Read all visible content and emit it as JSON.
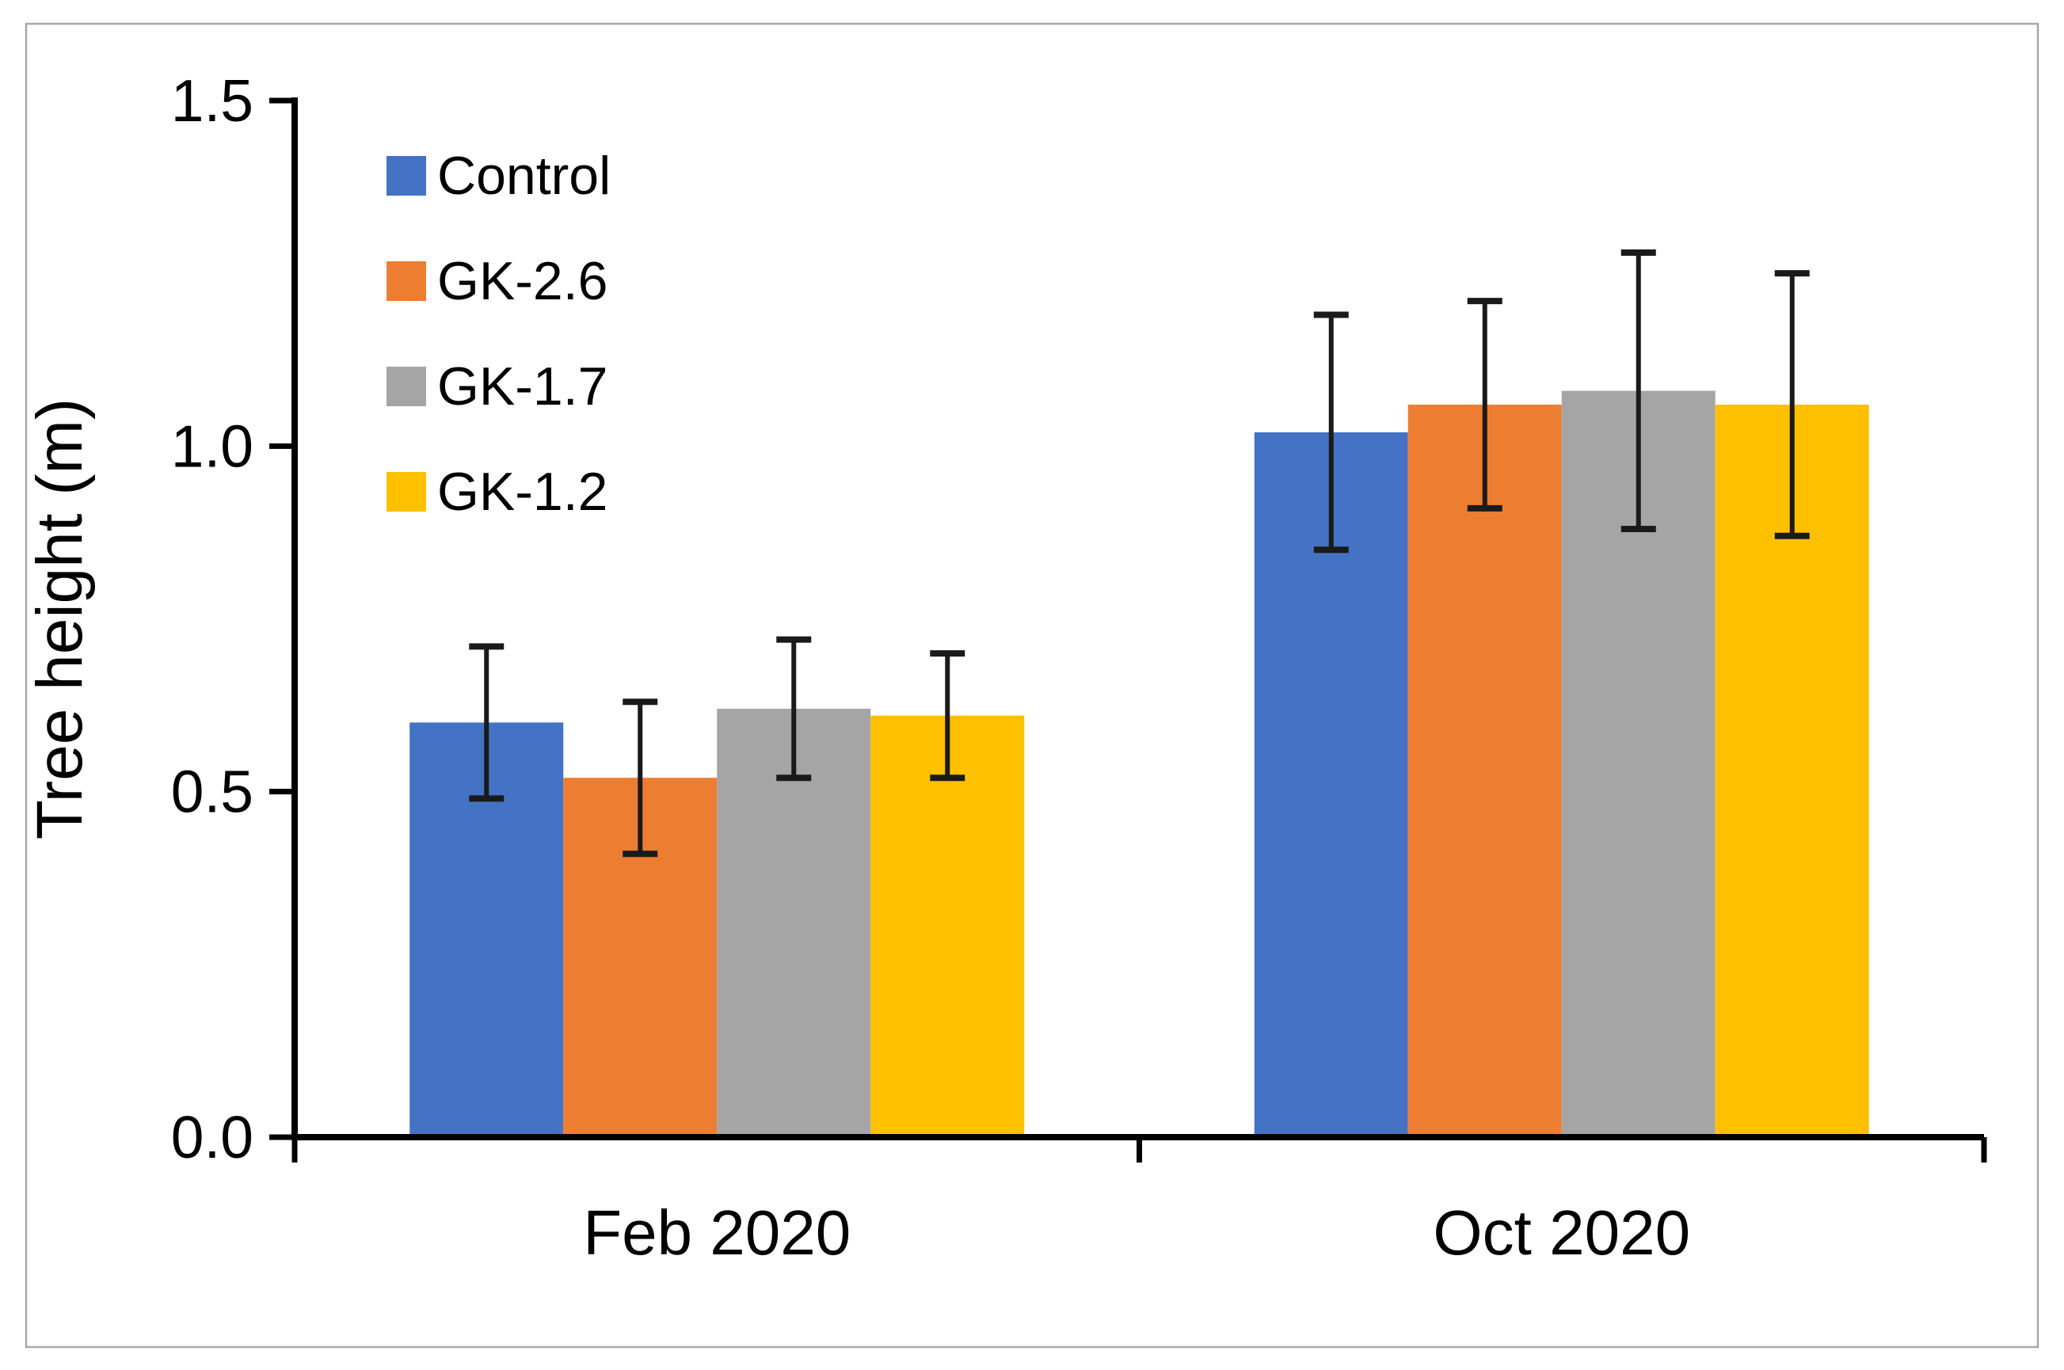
{
  "chart_data": {
    "type": "bar",
    "title": "",
    "ylabel": "Tree height (m)",
    "xlabel": "",
    "categories": [
      "Feb 2020",
      "Oct 2020"
    ],
    "ylim": [
      0,
      1.5
    ],
    "y_ticks": [
      "0.0",
      "0.5",
      "1.0",
      "1.5"
    ],
    "y_tick_values": [
      0.0,
      0.5,
      1.0,
      1.5
    ],
    "grid": false,
    "legend_position": "upper-left inside plot",
    "error_bar_note": "symmetric error bars, err values are ± in metres",
    "series": [
      {
        "name": "Control",
        "color": "#4472C4",
        "values": [
          0.6,
          1.02
        ],
        "err": [
          0.11,
          0.17
        ]
      },
      {
        "name": "GK-2.6",
        "color": "#ED7D31",
        "values": [
          0.52,
          1.06
        ],
        "err": [
          0.11,
          0.15
        ]
      },
      {
        "name": "GK-1.7",
        "color": "#A5A5A5",
        "values": [
          0.62,
          1.08
        ],
        "err": [
          0.1,
          0.2
        ]
      },
      {
        "name": "GK-1.2",
        "color": "#FFC000",
        "values": [
          0.61,
          1.06
        ],
        "err": [
          0.09,
          0.19
        ]
      }
    ],
    "colors": {
      "axis": "#000000",
      "error_bar": "#1a1a1a",
      "frame_border": "#a9a9a9",
      "background": "#ffffff"
    }
  }
}
